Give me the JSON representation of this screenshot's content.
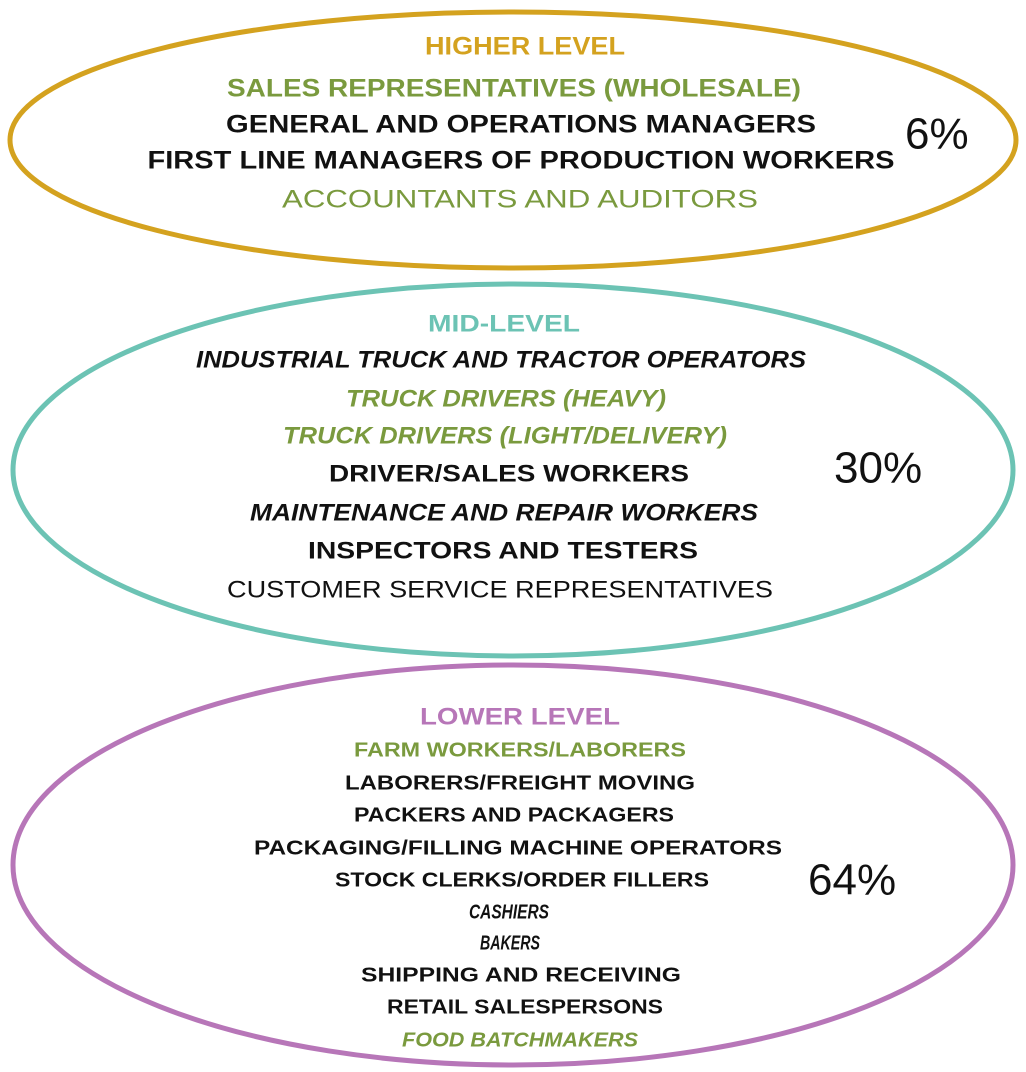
{
  "levels": [
    {
      "title": "HIGHER LEVEL",
      "percent": "6%",
      "items": [
        "SALES REPRESENTATIVES (WHOLESALE)",
        "GENERAL AND OPERATIONS MANAGERS",
        "FIRST LINE MANAGERS OF PRODUCTION WORKERS",
        "ACCOUNTANTS AND AUDITORS"
      ]
    },
    {
      "title": "MID-LEVEL",
      "percent": "30%",
      "items": [
        "INDUSTRIAL TRUCK AND TRACTOR OPERATORS",
        "TRUCK DRIVERS (HEAVY)",
        "TRUCK DRIVERS (LIGHT/DELIVERY)",
        "DRIVER/SALES WORKERS",
        "MAINTENANCE AND REPAIR WORKERS",
        "INSPECTORS AND TESTERS",
        "CUSTOMER SERVICE REPRESENTATIVES"
      ]
    },
    {
      "title": "LOWER LEVEL",
      "percent": "64%",
      "items": [
        "FARM WORKERS/LABORERS",
        "LABORERS/FREIGHT MOVING",
        "PACKERS AND PACKAGERS",
        "PACKAGING/FILLING MACHINE OPERATORS",
        "STOCK CLERKS/ORDER FILLERS",
        "CASHIERS",
        "BAKERS",
        "SHIPPING AND RECEIVING",
        "RETAIL SALESPERSONS",
        "FOOD BATCHMAKERS"
      ]
    }
  ]
}
